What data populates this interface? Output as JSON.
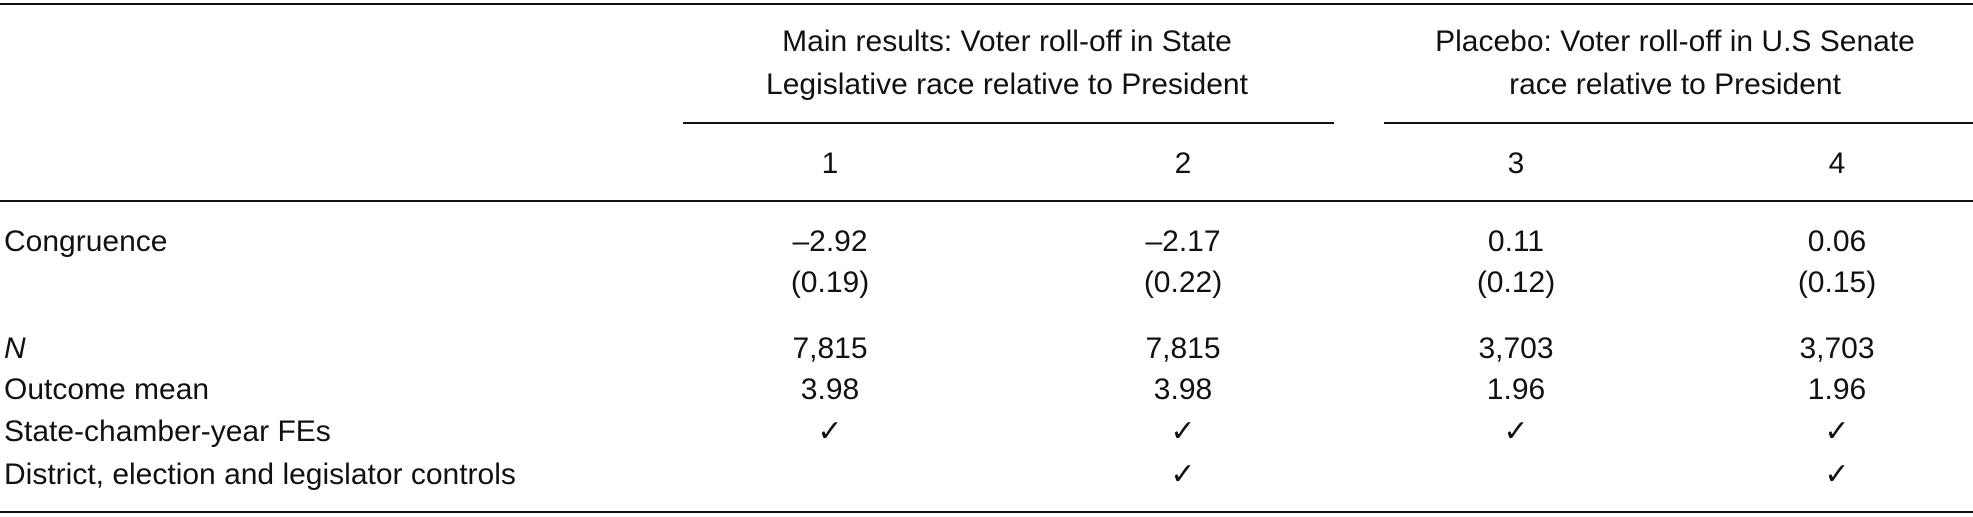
{
  "table": {
    "column_groups": [
      {
        "label_lines": [
          "Main results: Voter roll-off in State",
          "Legislative race relative to President"
        ]
      },
      {
        "label_lines": [
          "Placebo: Voter roll-off in U.S Senate",
          "race relative to President"
        ]
      }
    ],
    "columns": [
      "1",
      "2",
      "3",
      "4"
    ],
    "rows": [
      {
        "label": "Congruence",
        "cells": [
          "–2.92",
          "–2.17",
          "0.11",
          "0.06"
        ],
        "se": [
          "(0.19)",
          "(0.22)",
          "(0.12)",
          "(0.15)"
        ]
      },
      {
        "label": "N",
        "cells": [
          "7,815",
          "7,815",
          "3,703",
          "3,703"
        ]
      },
      {
        "label": "Outcome mean",
        "cells": [
          "3.98",
          "3.98",
          "1.96",
          "1.96"
        ]
      },
      {
        "label": "State-chamber-year FEs",
        "cells": [
          "✓",
          "✓",
          "✓",
          "✓"
        ]
      },
      {
        "label": "District, election and legislator controls",
        "cells": [
          null,
          "✓",
          null,
          "✓"
        ]
      }
    ]
  }
}
